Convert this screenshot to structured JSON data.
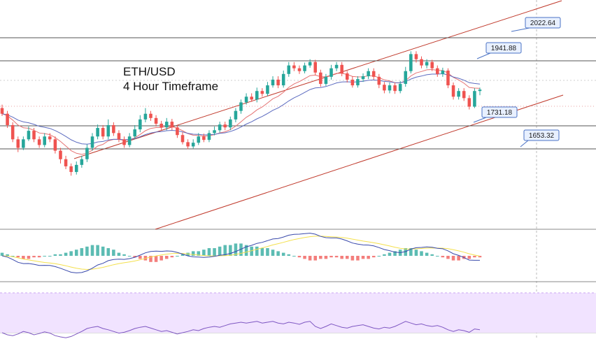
{
  "chart_data": {
    "type": "candlestick",
    "title_line1": "ETH/USD",
    "title_line2": "4 Hour Timeframe",
    "price_range": [
      1460,
      2140
    ],
    "levels": [
      {
        "label": "2022.64",
        "value": 2022.64
      },
      {
        "label": "1941.88",
        "value": 1941.88
      },
      {
        "label": "1731.18",
        "value": 1731.18
      },
      {
        "label": "1653.32",
        "value": 1653.32
      }
    ],
    "colors": {
      "bull": "#26a69a",
      "bear": "#ef5350",
      "channel": "#c0392b",
      "level_line": "#555555",
      "ma_fast": "#e57373",
      "ma_slow": "#5c6bc0",
      "macd_line": "#3949ab",
      "signal_line": "#f4e04d",
      "rsi_line": "#7e57c2",
      "rsi_band": "#f1e3ff",
      "label_bg": "#e8f0ff",
      "label_border": "#4a72c4"
    },
    "candles": [
      [
        1800,
        1780,
        1812,
        1772
      ],
      [
        1780,
        1740,
        1790,
        1730
      ],
      [
        1740,
        1690,
        1750,
        1680
      ],
      [
        1690,
        1660,
        1700,
        1645
      ],
      [
        1660,
        1690,
        1700,
        1652
      ],
      [
        1690,
        1720,
        1735,
        1684
      ],
      [
        1720,
        1690,
        1730,
        1680
      ],
      [
        1690,
        1670,
        1700,
        1660
      ],
      [
        1670,
        1700,
        1712,
        1662
      ],
      [
        1700,
        1690,
        1712,
        1680
      ],
      [
        1690,
        1650,
        1700,
        1640
      ],
      [
        1650,
        1620,
        1660,
        1605
      ],
      [
        1620,
        1595,
        1632,
        1585
      ],
      [
        1595,
        1575,
        1605,
        1562
      ],
      [
        1575,
        1600,
        1612,
        1566
      ],
      [
        1600,
        1620,
        1632,
        1590
      ],
      [
        1620,
        1660,
        1672,
        1610
      ],
      [
        1660,
        1700,
        1712,
        1650
      ],
      [
        1700,
        1730,
        1742,
        1690
      ],
      [
        1730,
        1700,
        1740,
        1690
      ],
      [
        1700,
        1740,
        1760,
        1690
      ],
      [
        1740,
        1712,
        1750,
        1702
      ],
      [
        1712,
        1690,
        1722,
        1680
      ],
      [
        1690,
        1670,
        1700,
        1660
      ],
      [
        1670,
        1700,
        1712,
        1662
      ],
      [
        1700,
        1725,
        1740,
        1690
      ],
      [
        1725,
        1760,
        1775,
        1715
      ],
      [
        1760,
        1780,
        1800,
        1750
      ],
      [
        1780,
        1765,
        1790,
        1755
      ],
      [
        1765,
        1745,
        1775,
        1735
      ],
      [
        1745,
        1732,
        1755,
        1722
      ],
      [
        1732,
        1752,
        1765,
        1722
      ],
      [
        1752,
        1732,
        1762,
        1722
      ],
      [
        1732,
        1705,
        1740,
        1695
      ],
      [
        1705,
        1680,
        1715,
        1672
      ],
      [
        1680,
        1665,
        1690,
        1655
      ],
      [
        1665,
        1678,
        1690,
        1658
      ],
      [
        1678,
        1700,
        1712,
        1670
      ],
      [
        1700,
        1688,
        1710,
        1680
      ],
      [
        1688,
        1712,
        1722,
        1680
      ],
      [
        1712,
        1722,
        1735,
        1704
      ],
      [
        1722,
        1742,
        1752,
        1714
      ],
      [
        1742,
        1732,
        1752,
        1722
      ],
      [
        1732,
        1760,
        1770,
        1722
      ],
      [
        1760,
        1790,
        1800,
        1750
      ],
      [
        1790,
        1820,
        1830,
        1780
      ],
      [
        1820,
        1840,
        1852,
        1812
      ],
      [
        1840,
        1830,
        1852,
        1822
      ],
      [
        1830,
        1860,
        1872,
        1820
      ],
      [
        1860,
        1850,
        1870,
        1840
      ],
      [
        1850,
        1880,
        1892,
        1842
      ],
      [
        1880,
        1900,
        1912,
        1872
      ],
      [
        1900,
        1880,
        1912,
        1870
      ],
      [
        1880,
        1920,
        1932,
        1872
      ],
      [
        1920,
        1950,
        1962,
        1910
      ],
      [
        1950,
        1940,
        1962,
        1930
      ],
      [
        1940,
        1930,
        1950,
        1920
      ],
      [
        1930,
        1950,
        1960,
        1922
      ],
      [
        1950,
        1962,
        1972,
        1942
      ],
      [
        1962,
        1925,
        1970,
        1915
      ],
      [
        1925,
        1885,
        1935,
        1875
      ],
      [
        1885,
        1910,
        1920,
        1878
      ],
      [
        1910,
        1940,
        1952,
        1900
      ],
      [
        1940,
        1952,
        1962,
        1930
      ],
      [
        1952,
        1922,
        1962,
        1912
      ],
      [
        1922,
        1900,
        1930,
        1890
      ],
      [
        1900,
        1880,
        1912,
        1872
      ],
      [
        1880,
        1902,
        1912,
        1872
      ],
      [
        1902,
        1912,
        1922,
        1892
      ],
      [
        1912,
        1930,
        1940,
        1902
      ],
      [
        1930,
        1910,
        1940,
        1900
      ],
      [
        1910,
        1882,
        1920,
        1870
      ],
      [
        1882,
        1862,
        1892,
        1852
      ],
      [
        1862,
        1880,
        1890,
        1852
      ],
      [
        1880,
        1860,
        1890,
        1850
      ],
      [
        1860,
        1885,
        1895,
        1852
      ],
      [
        1885,
        1930,
        1945,
        1875
      ],
      [
        1930,
        1990,
        2000,
        1922
      ],
      [
        1990,
        1972,
        2000,
        1960
      ],
      [
        1972,
        1950,
        1982,
        1940
      ],
      [
        1950,
        1962,
        1972,
        1940
      ],
      [
        1962,
        1940,
        1970,
        1930
      ],
      [
        1940,
        1920,
        1950,
        1910
      ],
      [
        1920,
        1932,
        1942,
        1910
      ],
      [
        1932,
        1880,
        1940,
        1870
      ],
      [
        1880,
        1840,
        1890,
        1830
      ],
      [
        1840,
        1860,
        1870,
        1830
      ],
      [
        1860,
        1835,
        1870,
        1825
      ],
      [
        1835,
        1805,
        1845,
        1795
      ],
      [
        1805,
        1860,
        1870,
        1800
      ],
      [
        1860,
        1865,
        1872,
        1845
      ]
    ],
    "macd_hist": [
      2,
      1,
      0,
      -1,
      -2,
      -2,
      -1,
      -1,
      0,
      0,
      1,
      1,
      2,
      3,
      4,
      5,
      6,
      7,
      7,
      6,
      5,
      4,
      2,
      1,
      0,
      -1,
      -2,
      -3,
      -4,
      -4,
      -3,
      -2,
      -1,
      0,
      1,
      2,
      3,
      3,
      4,
      5,
      5,
      6,
      7,
      7,
      8,
      8,
      7,
      6,
      6,
      5,
      5,
      4,
      3,
      2,
      1,
      0,
      -1,
      -2,
      -3,
      -3,
      -2,
      -2,
      -1,
      -1,
      -2,
      -2,
      -3,
      -3,
      -2,
      -2,
      -1,
      0,
      1,
      2,
      3,
      4,
      5,
      5,
      4,
      3,
      2,
      1,
      0,
      -1,
      -2,
      -3,
      -3,
      -2,
      -2,
      -1,
      -1
    ],
    "rsi": [
      45,
      40,
      38,
      42,
      48,
      45,
      40,
      43,
      47,
      44,
      38,
      35,
      33,
      36,
      42,
      48,
      55,
      58,
      60,
      55,
      52,
      48,
      44,
      46,
      50,
      55,
      58,
      60,
      56,
      52,
      48,
      50,
      46,
      42,
      45,
      48,
      52,
      50,
      55,
      58,
      60,
      58,
      62,
      66,
      68,
      70,
      68,
      70,
      72,
      68,
      70,
      72,
      68,
      66,
      70,
      68,
      65,
      70,
      72,
      60,
      55,
      60,
      66,
      62,
      58,
      56,
      60,
      62,
      64,
      60,
      56,
      54,
      58,
      56,
      60,
      66,
      72,
      68,
      64,
      66,
      62,
      60,
      62,
      58,
      52,
      48,
      52,
      50,
      46,
      54,
      52
    ]
  }
}
